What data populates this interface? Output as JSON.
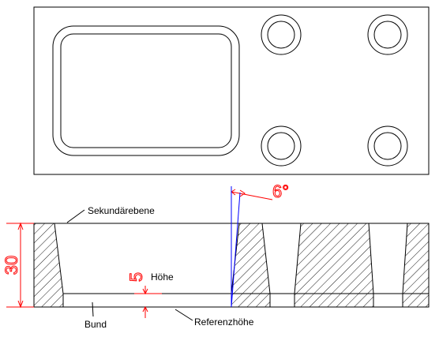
{
  "labels": {
    "secondary_plane": "Sekundärebene",
    "height": "Höhe",
    "collar": "Bund",
    "reference_height": "Referenzhöhe"
  },
  "dimensions": {
    "angle": "6°",
    "overall_height": "30",
    "collar_height": "5"
  },
  "colors": {
    "outline": "#000000",
    "dimension": "#ff0000",
    "axis": "#0000ff"
  },
  "hatch_pattern": "diagonal-45"
}
